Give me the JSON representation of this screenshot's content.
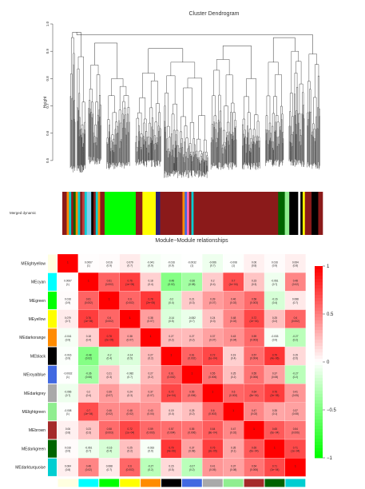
{
  "chart_data": [
    {
      "type": "dendrogram",
      "title": "Cluster Dendrogram",
      "ylabel": "Height",
      "ylim": [
        0.45,
        1.0
      ],
      "yticks": [
        "0.5",
        "0.6",
        "0.7",
        "0.8",
        "0.9",
        "1.0"
      ],
      "ytick_values": [
        0.5,
        0.6,
        0.7,
        0.8,
        0.9,
        1.0
      ],
      "branches": [
        {
          "left": 0.03,
          "right": 0.05,
          "top": 0.95,
          "bottom": 0.47
        },
        {
          "left": 0.055,
          "right": 0.09,
          "top": 0.88,
          "bottom": 0.47
        },
        {
          "left": 0.1,
          "right": 0.15,
          "top": 0.85,
          "bottom": 0.5
        },
        {
          "left": 0.17,
          "right": 0.26,
          "top": 0.8,
          "bottom": 0.48
        },
        {
          "left": 0.28,
          "right": 0.38,
          "top": 0.82,
          "bottom": 0.49
        },
        {
          "left": 0.39,
          "right": 0.56,
          "top": 0.86,
          "bottom": 0.45
        },
        {
          "left": 0.57,
          "right": 0.67,
          "top": 0.87,
          "bottom": 0.48
        },
        {
          "left": 0.69,
          "right": 0.76,
          "top": 0.8,
          "bottom": 0.48
        },
        {
          "left": 0.78,
          "right": 0.85,
          "top": 0.86,
          "bottom": 0.49
        },
        {
          "left": 0.87,
          "right": 0.93,
          "top": 0.9,
          "bottom": 0.49
        },
        {
          "left": 0.94,
          "right": 0.99,
          "top": 0.89,
          "bottom": 0.48
        }
      ],
      "merges": [
        {
          "a": 0,
          "b": 1,
          "height": 0.97
        },
        {
          "a": 2,
          "b": 3,
          "height": 0.93
        },
        {
          "a": 4,
          "b": 5,
          "height": 0.91
        },
        {
          "a": 6,
          "b": 7,
          "height": 0.92
        },
        {
          "a": 8,
          "b": 9,
          "height": 0.95
        },
        {
          "a": 10,
          "b": 11,
          "height": 0.96
        }
      ]
    },
    {
      "type": "color-bar",
      "label": "Merged dynamic",
      "segments": [
        {
          "color": "#8b1a1a",
          "w": 2
        },
        {
          "color": "#ff8c00",
          "w": 1
        },
        {
          "color": "#00ced1",
          "w": 1
        },
        {
          "color": "#8b1a1a",
          "w": 1
        },
        {
          "color": "#006400",
          "w": 1
        },
        {
          "color": "#ff8c00",
          "w": 1
        },
        {
          "color": "#00ced1",
          "w": 1
        },
        {
          "color": "#8b1a1a",
          "w": 1
        },
        {
          "color": "#c04040",
          "w": 1
        },
        {
          "color": "#00ced1",
          "w": 1
        },
        {
          "color": "#87ceeb",
          "w": 2
        },
        {
          "color": "#000000",
          "w": 1
        },
        {
          "color": "#8b1a1a",
          "w": 1
        },
        {
          "color": "#00ced1",
          "w": 1
        },
        {
          "color": "#ff8c00",
          "w": 1
        },
        {
          "color": "#8b1a1a",
          "w": 2
        },
        {
          "color": "#00ff00",
          "w": 14
        },
        {
          "color": "#8b1a1a",
          "w": 3
        },
        {
          "color": "#ffff00",
          "w": 6
        },
        {
          "color": "#2e1f6e",
          "w": 2
        },
        {
          "color": "#8b1a1a",
          "w": 10
        },
        {
          "color": "#ff8c00",
          "w": 1
        },
        {
          "color": "#4169e1",
          "w": 1
        },
        {
          "color": "#ff69b4",
          "w": 1
        },
        {
          "color": "#8b1a1a",
          "w": 1
        },
        {
          "color": "#00ced1",
          "w": 1
        },
        {
          "color": "#8b1a1a",
          "w": 38
        },
        {
          "color": "#006400",
          "w": 3
        },
        {
          "color": "#90ee90",
          "w": 2
        },
        {
          "color": "#000000",
          "w": 4
        },
        {
          "color": "#ffffff",
          "w": 1
        },
        {
          "color": "#000000",
          "w": 1
        },
        {
          "color": "#ffff00",
          "w": 1
        },
        {
          "color": "#8b1a1a",
          "w": 3
        },
        {
          "color": "#000000",
          "w": 3
        },
        {
          "color": "#8b1a1a",
          "w": 2
        }
      ]
    },
    {
      "type": "heatmap",
      "title": "Module−Module relationships",
      "rows": [
        "MElightyellow",
        "MEcyan",
        "MEgreen",
        "MEyellow",
        "MEdarkorange",
        "MEblack",
        "MEroyalblue",
        "MEdarkgrey",
        "MElightgreen",
        "MEbrown",
        "MEdarkgreen",
        "MEdarkturquoise"
      ],
      "row_colors": [
        "#ffffe0",
        "#00ffff",
        "#00ff00",
        "#ffff00",
        "#ff8c00",
        "#000000",
        "#4169e1",
        "#a9a9a9",
        "#90ee90",
        "#a52a2a",
        "#006400",
        "#00ced1"
      ],
      "values": [
        [
          1,
          0.0067,
          0.016,
          0.079,
          -0.041,
          -0.016,
          -0.0032,
          -0.066,
          -0.008,
          0.06,
          0.016,
          0.064
        ],
        [
          0.0067,
          1,
          0.61,
          0.76,
          0.18,
          -0.48,
          -0.36,
          0.2,
          0.7,
          0.23,
          -0.061,
          0.48
        ],
        [
          0.016,
          0.61,
          1,
          0.6,
          0.78,
          -0.2,
          0.21,
          0.39,
          0.46,
          0.58,
          -0.16,
          0.088
        ],
        [
          0.079,
          0.76,
          0.6,
          1,
          0.38,
          -0.14,
          -0.082,
          0.24,
          0.48,
          0.72,
          0.25,
          0.6
        ],
        [
          -0.041,
          0.18,
          0.78,
          0.38,
          1,
          0.27,
          0.27,
          0.37,
          0.43,
          0.59,
          -0.033,
          -0.27
        ],
        [
          -0.016,
          -0.48,
          -0.2,
          -0.14,
          0.27,
          1,
          0.61,
          0.72,
          0.19,
          0.57,
          0.79,
          0.15
        ],
        [
          -0.0032,
          -0.36,
          0.21,
          -0.082,
          0.27,
          0.61,
          1,
          0.55,
          0.25,
          0.55,
          0.37,
          -0.27
        ],
        [
          -0.066,
          0.2,
          0.39,
          0.24,
          0.37,
          0.72,
          0.55,
          1,
          0.6,
          0.64,
          0.76,
          0.41
        ],
        [
          -0.008,
          0.7,
          0.46,
          0.48,
          0.43,
          0.19,
          0.25,
          0.6,
          1,
          0.47,
          0.35,
          0.37
        ],
        [
          0.06,
          0.23,
          0.58,
          0.72,
          0.59,
          0.57,
          0.55,
          0.64,
          0.47,
          1,
          0.65,
          0.54
        ],
        [
          0.016,
          -0.061,
          -0.16,
          0.25,
          -0.033,
          0.79,
          0.37,
          0.76,
          0.35,
          0.65,
          1,
          0.71
        ],
        [
          0.064,
          0.48,
          0.088,
          0.6,
          -0.27,
          0.15,
          -0.27,
          0.41,
          0.37,
          0.54,
          0.71,
          1
        ]
      ],
      "pvalues": [
        [
          "",
          "(1)",
          "(0.9)",
          "(0.7)",
          "(0.9)",
          "(0.9)",
          "(1)",
          "(0.7)",
          "(1)",
          "(0.8)",
          "(0.9)",
          "(0.8)"
        ],
        [
          "(1)",
          "",
          "(0.002)",
          "(1e−05)",
          "(0.4)",
          "(0.02)",
          "(0.08)",
          "(0.4)",
          "(1e−04)",
          "(0.3)",
          "(0.7)",
          "(0.02)"
        ],
        [
          "(0.9)",
          "(0.002)",
          "",
          "(0.002)",
          "(2e−05)",
          "(0.4)",
          "(0.3)",
          "(0.07)",
          "(0.02)",
          "(0.003)",
          "(0.4)",
          "(0.7)"
        ],
        [
          "(0.7)",
          "(1e−05)",
          "(0.002)",
          "",
          "(0.07)",
          "(0.5)",
          "(0.7)",
          "(0.3)",
          "(0.02)",
          "(1e−04)",
          "(0.2)",
          "(0.002)"
        ],
        [
          "(0.9)",
          "(0.4)",
          "(2e−05)",
          "(0.07)",
          "",
          "(0.2)",
          "(0.2)",
          "(0.07)",
          "(0.04)",
          "(0.003)",
          "(0.9)",
          "(0.2)"
        ],
        [
          "(0.9)",
          "(0.02)",
          "(0.4)",
          "(0.5)",
          "(0.2)",
          "",
          "(0.002)",
          "(1e−04)",
          "(0.4)",
          "(0.004)",
          "(4e−06)",
          "(0.5)"
        ],
        [
          "(1)",
          "(0.08)",
          "(0.3)",
          "(0.7)",
          "(0.2)",
          "(0.002)",
          "",
          "(0.006)",
          "(0.2)",
          "(0.006)",
          "(0.08)",
          "(0.2)"
        ],
        [
          "(0.7)",
          "(0.4)",
          "(0.07)",
          "(0.3)",
          "(0.07)",
          "(1e−04)",
          "(0.006)",
          "",
          "(0.002)",
          "(8e−04)",
          "(2e−05)",
          "(0.05)"
        ],
        [
          "(1)",
          "(1e−04)",
          "(0.02)",
          "(0.02)",
          "(0.04)",
          "(0.4)",
          "(0.2)",
          "(0.002)",
          "",
          "(0.02)",
          "(0.1)",
          "(0.08)"
        ],
        [
          "(0.8)",
          "(0.3)",
          "(0.003)",
          "(1e−04)",
          "(0.003)",
          "(0.004)",
          "(0.006)",
          "(8e−04)",
          "(0.02)",
          "",
          "(6e−04)",
          "(0.006)"
        ],
        [
          "(0.9)",
          "(0.7)",
          "(0.4)",
          "(0.2)",
          "(0.9)",
          "(4e−06)",
          "(0.08)",
          "(2e−05)",
          "(0.1)",
          "(6e−04)",
          "",
          "(1e−04)"
        ],
        [
          "(0.8)",
          "(0.02)",
          "(0.7)",
          "(0.002)",
          "(0.2)",
          "(0.5)",
          "(0.2)",
          "(0.05)",
          "(0.08)",
          "(0.006)",
          "(1e−04)",
          ""
        ]
      ],
      "colorscale": {
        "low": "#00ff00",
        "mid": "#ffffff",
        "high": "#ff0000"
      },
      "legend": {
        "ticks": [
          "1",
          "0.5",
          "0",
          "−0.5",
          "−1"
        ],
        "values": [
          1,
          0.5,
          0,
          -0.5,
          -1
        ]
      }
    }
  ]
}
